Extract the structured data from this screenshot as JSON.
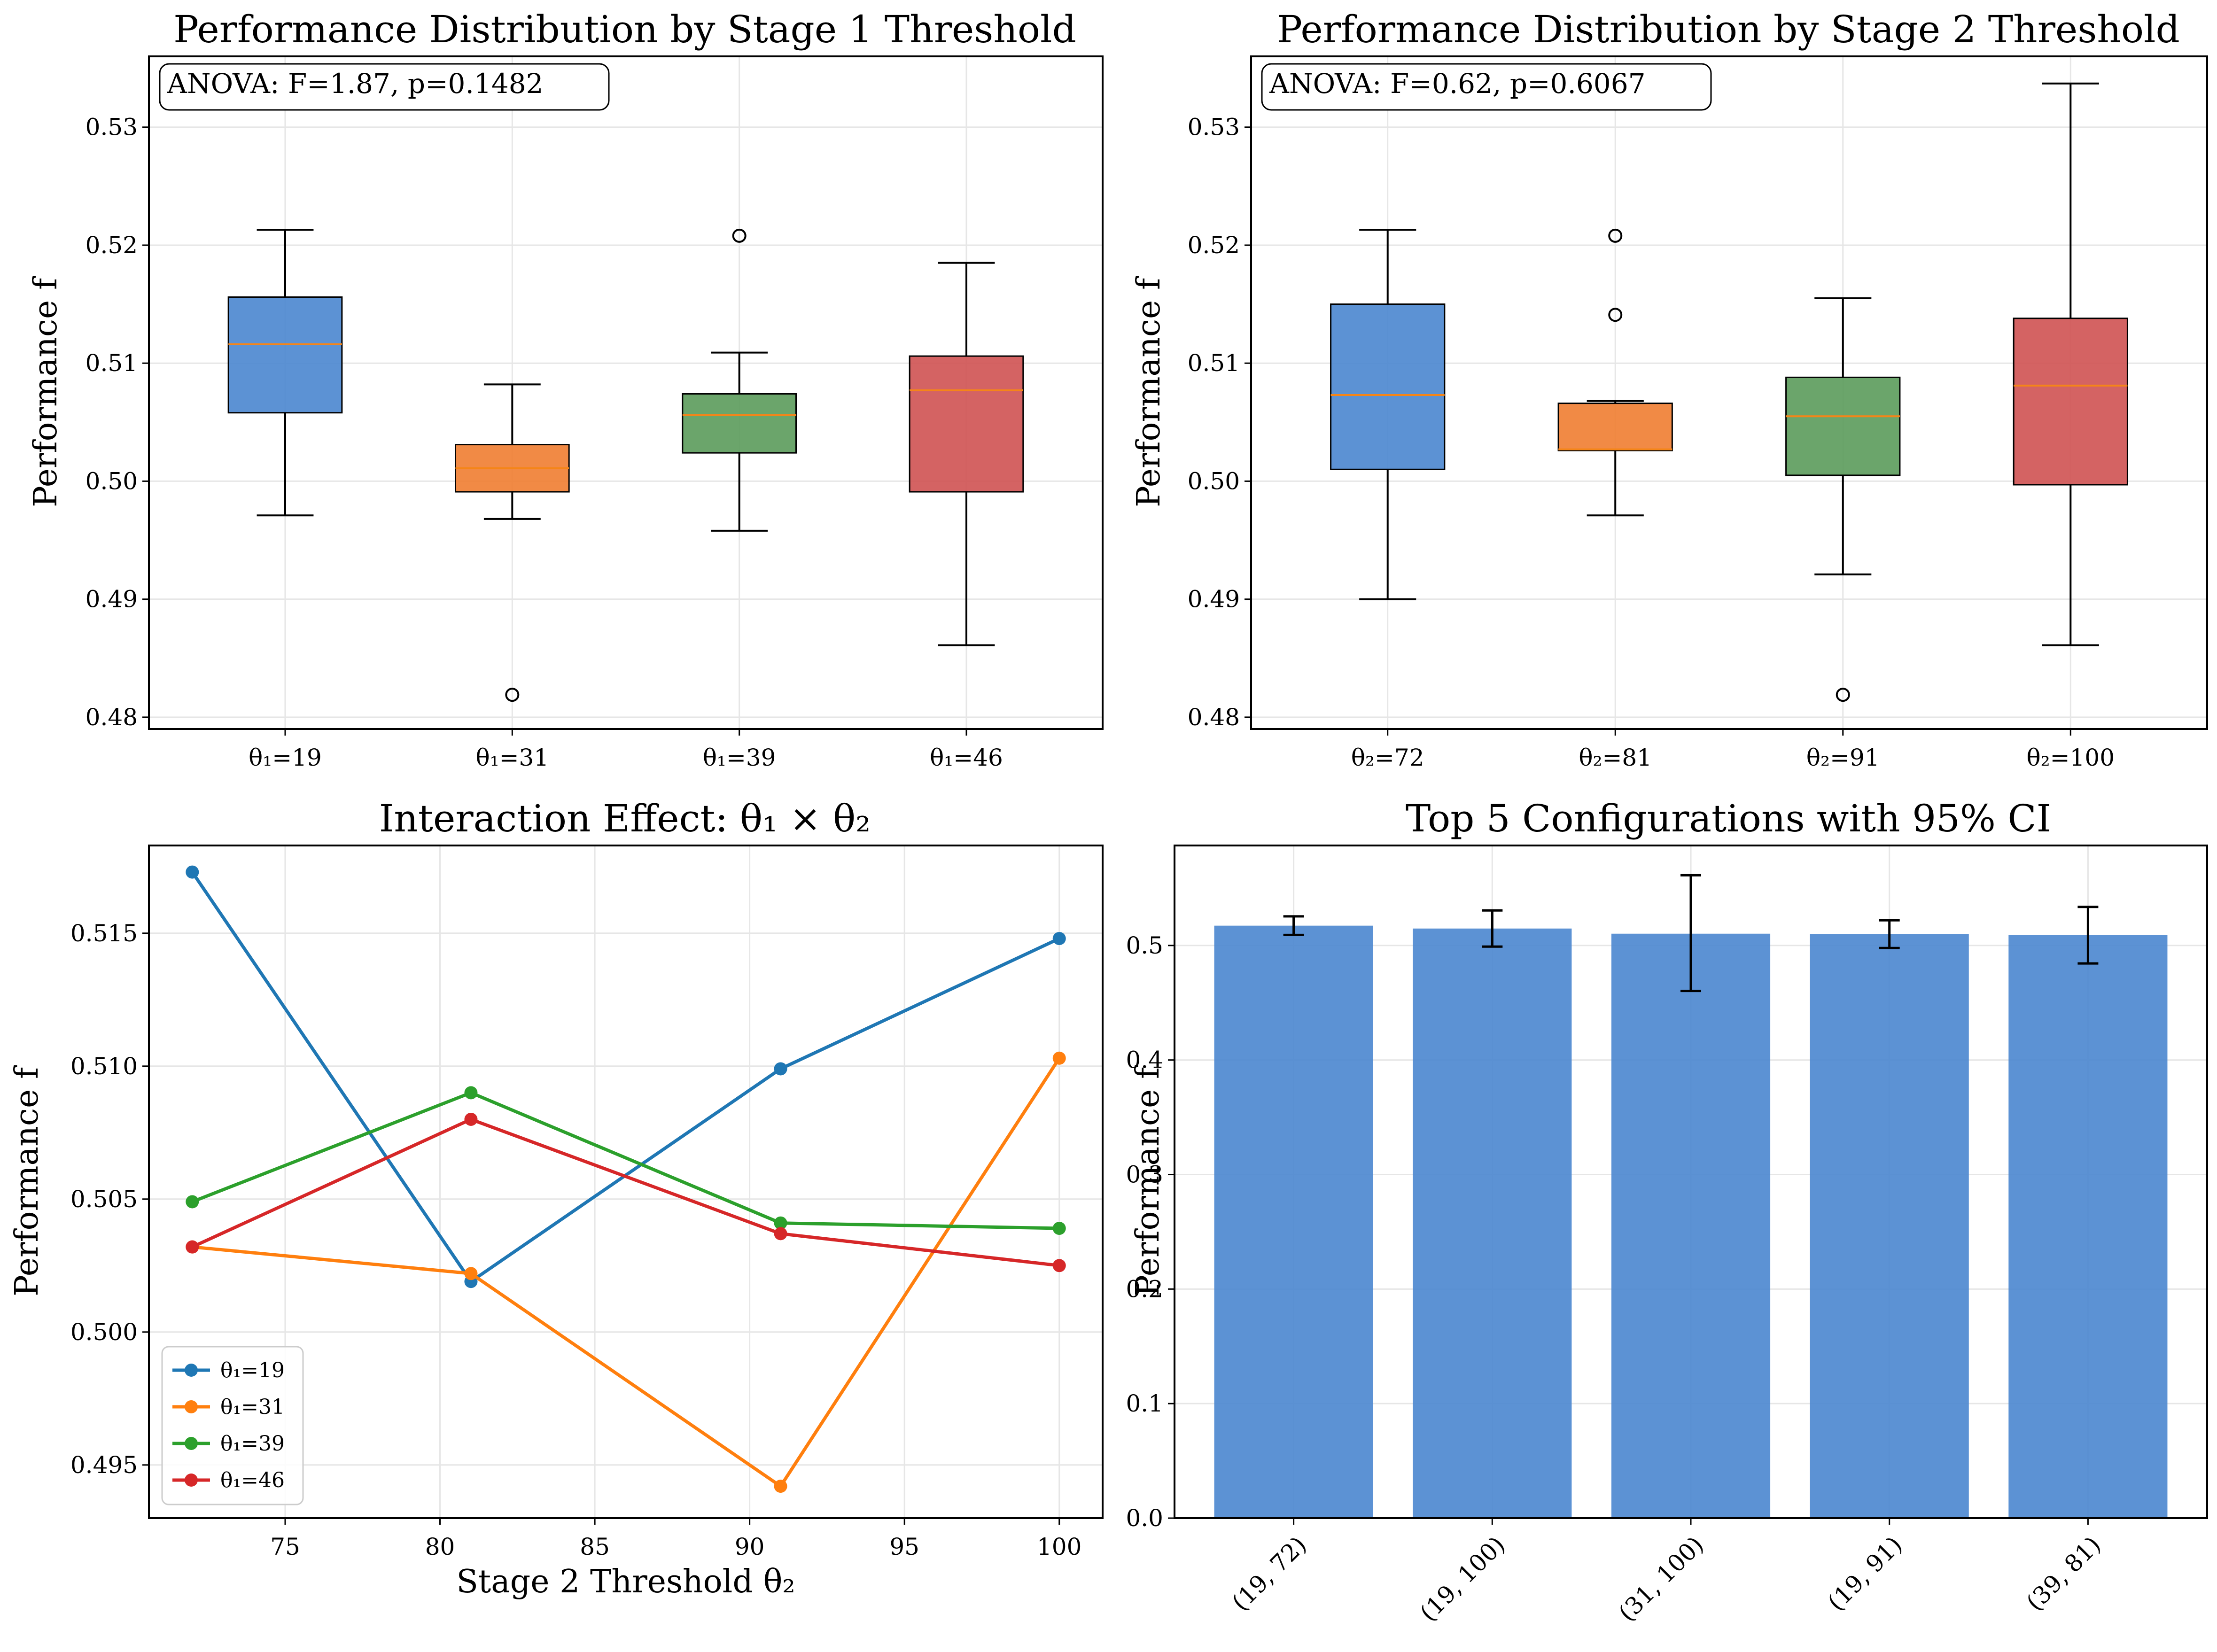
{
  "colors": {
    "blue": "#4a86cf",
    "orange": "#f07d31",
    "green": "#5b9b5b",
    "red": "#cf5252",
    "median": "#f58518",
    "line_blue": "#1f77b4",
    "line_orange": "#ff7f0e",
    "line_green": "#2ca02c",
    "line_red": "#d62728",
    "bar": "#4a86cf"
  },
  "chart_data": [
    {
      "type": "box",
      "title": "Performance Distribution by Stage 1 Threshold",
      "ylabel": "Performance f",
      "xlabel": "",
      "annotation": "ANOVA: F=1.87, p=0.1482",
      "ylim": [
        0.479,
        0.536
      ],
      "yticks": [
        "0.48",
        "0.49",
        "0.50",
        "0.51",
        "0.52",
        "0.53"
      ],
      "ytick_values": [
        0.48,
        0.49,
        0.5,
        0.51,
        0.52,
        0.53
      ],
      "grid": true,
      "categories": [
        "θ₁=19",
        "θ₁=31",
        "θ₁=39",
        "θ₁=46"
      ],
      "boxes": [
        {
          "whislo": 0.4971,
          "q1": 0.5058,
          "med": 0.5116,
          "q3": 0.5156,
          "whishi": 0.5213,
          "fliers": [],
          "color": "blue"
        },
        {
          "whislo": 0.4968,
          "q1": 0.4991,
          "med": 0.5011,
          "q3": 0.5031,
          "whishi": 0.5082,
          "fliers": [
            0.4819
          ],
          "color": "orange"
        },
        {
          "whislo": 0.4958,
          "q1": 0.5024,
          "med": 0.5056,
          "q3": 0.5074,
          "whishi": 0.5109,
          "fliers": [
            0.5208
          ],
          "color": "green"
        },
        {
          "whislo": 0.4861,
          "q1": 0.4991,
          "med": 0.5077,
          "q3": 0.5106,
          "whishi": 0.5185,
          "fliers": [],
          "color": "red"
        }
      ]
    },
    {
      "type": "box",
      "title": "Performance Distribution by Stage 2 Threshold",
      "ylabel": "Performance f",
      "xlabel": "",
      "annotation": "ANOVA: F=0.62, p=0.6067",
      "ylim": [
        0.479,
        0.536
      ],
      "yticks": [
        "0.48",
        "0.49",
        "0.50",
        "0.51",
        "0.52",
        "0.53"
      ],
      "ytick_values": [
        0.48,
        0.49,
        0.5,
        0.51,
        0.52,
        0.53
      ],
      "grid": true,
      "categories": [
        "θ₂=72",
        "θ₂=81",
        "θ₂=91",
        "θ₂=100"
      ],
      "boxes": [
        {
          "whislo": 0.49,
          "q1": 0.501,
          "med": 0.5073,
          "q3": 0.515,
          "whishi": 0.5213,
          "fliers": [],
          "color": "blue"
        },
        {
          "whislo": 0.4971,
          "q1": 0.5026,
          "med": 0.5027,
          "q3": 0.5066,
          "whishi": 0.5068,
          "fliers": [
            0.5141,
            0.5208
          ],
          "color": "orange"
        },
        {
          "whislo": 0.4921,
          "q1": 0.5005,
          "med": 0.5055,
          "q3": 0.5088,
          "whishi": 0.5155,
          "fliers": [
            0.4819
          ],
          "color": "green"
        },
        {
          "whislo": 0.4861,
          "q1": 0.4997,
          "med": 0.5081,
          "q3": 0.5138,
          "whishi": 0.5337,
          "fliers": [],
          "color": "red"
        }
      ]
    },
    {
      "type": "line",
      "title": "Interaction Effect: θ₁ × θ₂",
      "xlabel": "Stage 2 Threshold θ₂",
      "ylabel": "Performance f",
      "x": [
        72,
        81,
        91,
        100
      ],
      "xlim": [
        70.6,
        101.4
      ],
      "xticks": [
        75,
        80,
        85,
        90,
        95,
        100
      ],
      "ylim": [
        0.493,
        0.5183
      ],
      "yticks": [
        "0.495",
        "0.500",
        "0.505",
        "0.510",
        "0.515"
      ],
      "ytick_values": [
        0.495,
        0.5,
        0.505,
        0.51,
        0.515
      ],
      "grid": true,
      "legend_position": "lower-left",
      "series": [
        {
          "name": "θ₁=19",
          "values": [
            0.5173,
            0.5019,
            0.5099,
            0.5148
          ],
          "color": "line_blue"
        },
        {
          "name": "θ₁=31",
          "values": [
            0.5032,
            0.5022,
            0.4942,
            0.5103
          ],
          "color": "line_orange"
        },
        {
          "name": "θ₁=39",
          "values": [
            0.5049,
            0.509,
            0.5041,
            0.5039
          ],
          "color": "line_green"
        },
        {
          "name": "θ₁=46",
          "values": [
            0.5032,
            0.508,
            0.5037,
            0.5025
          ],
          "color": "line_red"
        }
      ]
    },
    {
      "type": "bar",
      "title": "Top 5 Configurations with 95% CI",
      "xlabel": "",
      "ylabel": "Performance f",
      "categories": [
        "(19, 72)",
        "(19, 100)",
        "(31, 100)",
        "(19, 91)",
        "(39, 81)"
      ],
      "values": [
        0.5173,
        0.5148,
        0.5103,
        0.5099,
        0.509
      ],
      "ci_low": [
        0.5092,
        0.499,
        0.4603,
        0.4978,
        0.4843
      ],
      "ci_high": [
        0.5254,
        0.5306,
        0.5613,
        0.522,
        0.5337
      ],
      "ylim": [
        0.0,
        0.5873
      ],
      "yticks": [
        "0.0",
        "0.1",
        "0.2",
        "0.3",
        "0.4",
        "0.5"
      ],
      "ytick_values": [
        0.0,
        0.1,
        0.2,
        0.3,
        0.4,
        0.5
      ],
      "grid": true,
      "color": "bar"
    }
  ]
}
